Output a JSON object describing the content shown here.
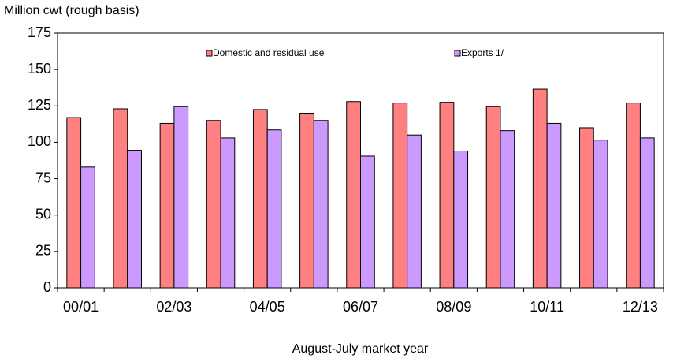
{
  "chart_data": {
    "type": "bar",
    "y_axis_label": "Million cwt (rough basis)",
    "x_axis_label": "August-July market year",
    "categories": [
      "00/01",
      null,
      "02/03",
      null,
      "04/05",
      null,
      "06/07",
      null,
      "08/09",
      null,
      "10/11",
      null,
      "12/13"
    ],
    "series": [
      {
        "name": "Domestic and residual use",
        "color": "#ff8080",
        "values": [
          117,
          123,
          113,
          115,
          122.5,
          120,
          128,
          127,
          127.5,
          124.5,
          136.5,
          110,
          127
        ]
      },
      {
        "name": "Exports 1/",
        "color": "#cc99ff",
        "values": [
          83,
          94.5,
          124.5,
          103,
          108.5,
          115,
          90.5,
          105,
          94,
          108,
          113,
          101.5,
          103
        ]
      }
    ],
    "ylim": [
      0,
      175
    ],
    "yticks": [
      0,
      25,
      50,
      75,
      100,
      125,
      150,
      175
    ],
    "grid": false
  }
}
